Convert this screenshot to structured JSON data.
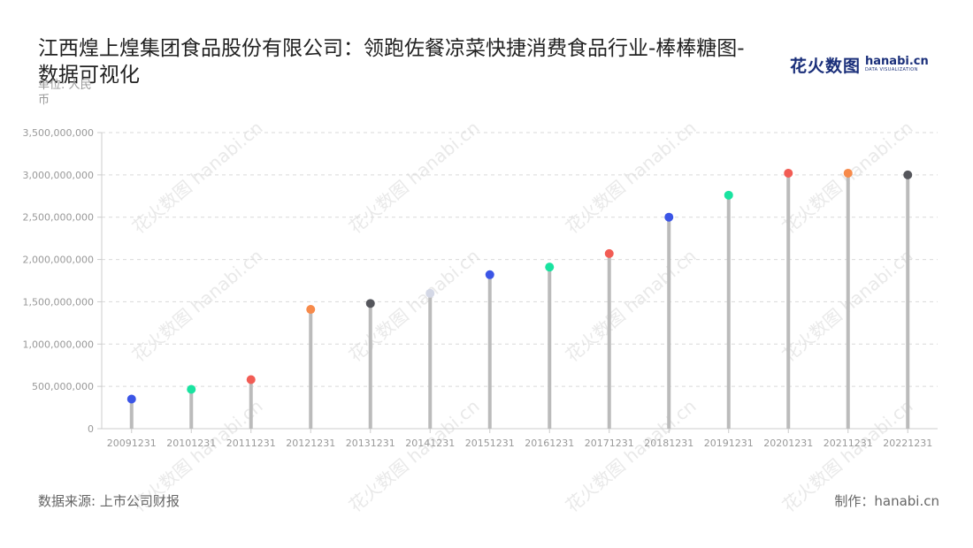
{
  "title": "江西煌上煌集团食品股份有限公司：领跑佐餐凉菜快捷消费食品行业-棒棒糖图-数据可视化",
  "unit_label": "单位: 人民币",
  "logo": {
    "cn": "花火数图",
    "en": "hanabi.cn",
    "en_sub": "DATA VISUALIZATION"
  },
  "watermark_text": "花火数图 hanabi.cn",
  "footer": {
    "source": "数据来源: 上市公司财报",
    "maker": "制作：hanabi.cn"
  },
  "chart_data": {
    "type": "lollipop",
    "categories": [
      "20091231",
      "20101231",
      "20111231",
      "20121231",
      "20131231",
      "20141231",
      "20151231",
      "20161231",
      "20171231",
      "20181231",
      "20191231",
      "20201231",
      "20211231",
      "20221231"
    ],
    "values": [
      350000000,
      465000000,
      580000000,
      1410000000,
      1480000000,
      1600000000,
      1820000000,
      1910000000,
      2070000000,
      2500000000,
      2760000000,
      3020000000,
      3020000000,
      3000000000
    ],
    "dot_colors": [
      "#3b55e6",
      "#19e3a0",
      "#f25c54",
      "#f78a4a",
      "#55565c",
      "#d4d8e6",
      "#3b55e6",
      "#19e3a0",
      "#f25c54",
      "#3b55e6",
      "#19e3a0",
      "#f25c54",
      "#f78a4a",
      "#55565c"
    ],
    "stem_color": "#bbbbbb",
    "y_ticks": [
      "0",
      "500,000,000",
      "1,000,000,000",
      "1,500,000,000",
      "2,000,000,000",
      "2,500,000,000",
      "3,000,000,000",
      "3,500,000,000"
    ],
    "ylim": [
      0,
      3500000000
    ],
    "grid": true
  }
}
